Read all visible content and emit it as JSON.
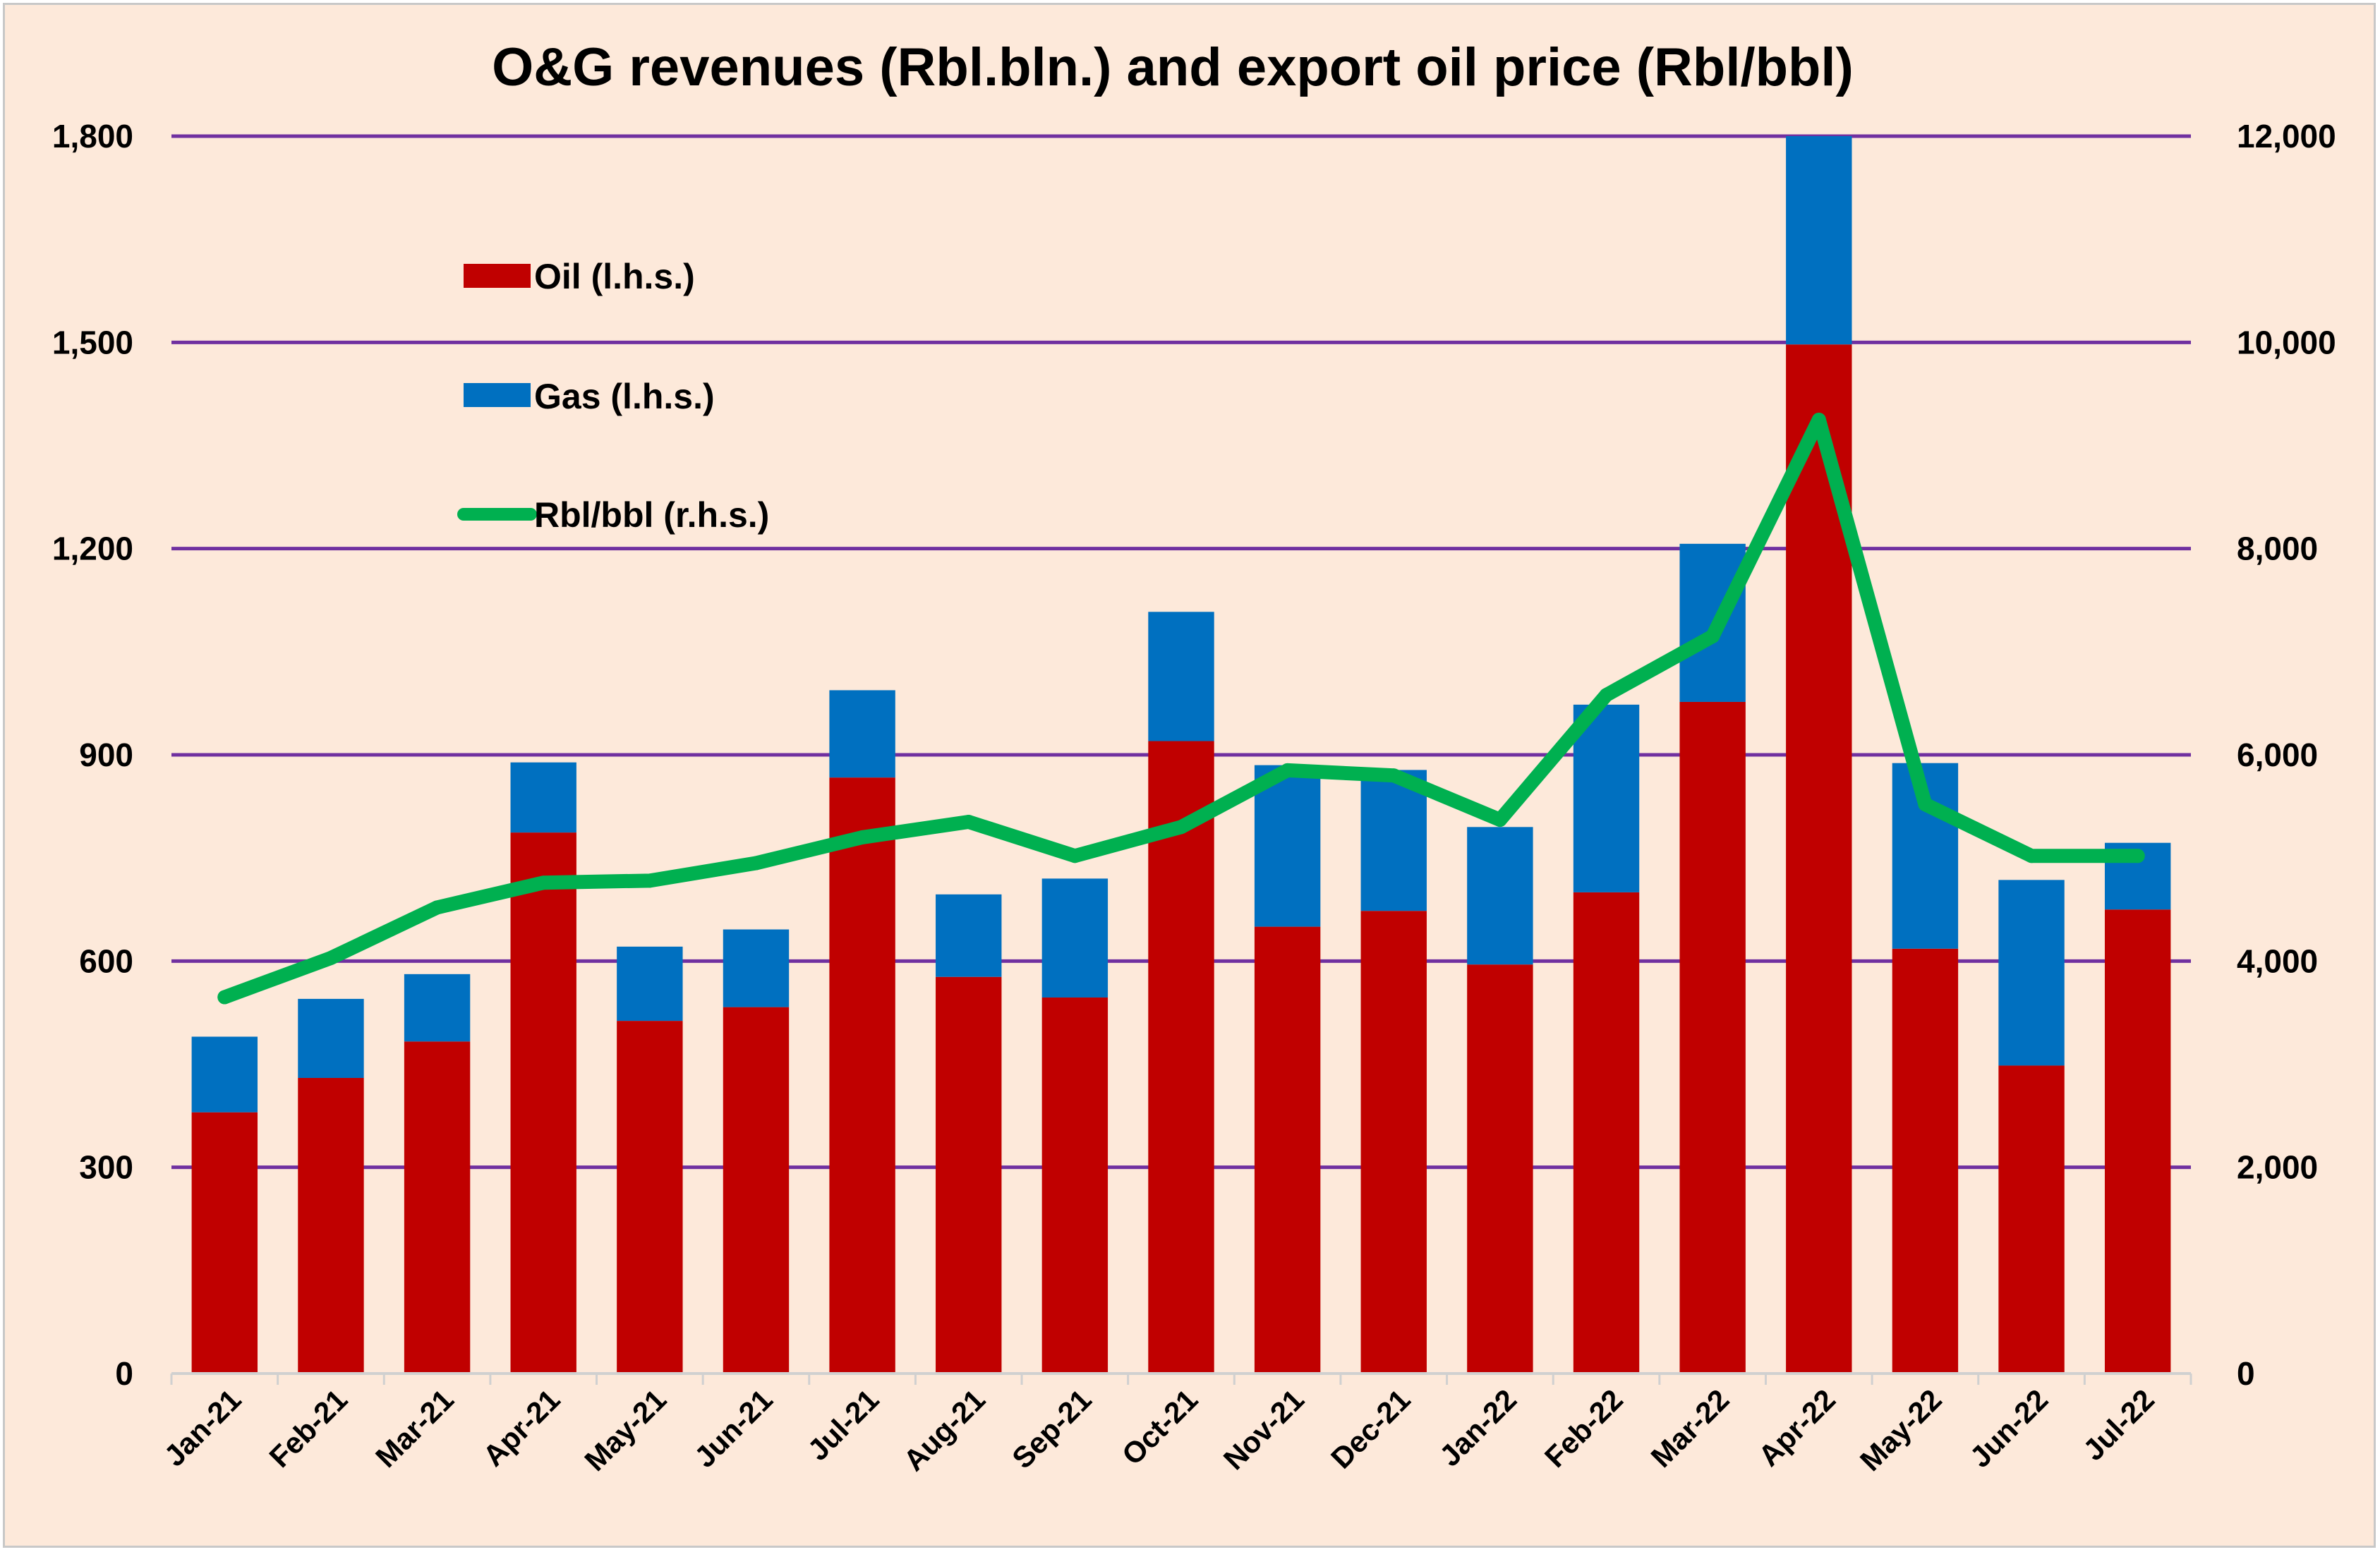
{
  "chart_data": {
    "type": "bar",
    "stacked": true,
    "title": "O&G revenues (Rbl.bln.) and export oil price (Rbl/bbl)",
    "categories": [
      "Jan-21",
      "Feb-21",
      "Mar-21",
      "Apr-21",
      "May-21",
      "Jun-21",
      "Jul-21",
      "Aug-21",
      "Sep-21",
      "Oct-21",
      "Nov-21",
      "Dec-21",
      "Jan-22",
      "Feb-22",
      "Mar-22",
      "Apr-22",
      "May-22",
      "Jun-22",
      "Jul-22"
    ],
    "series": [
      {
        "name": "Oil (l.h.s.)",
        "type": "bar",
        "axis": "left",
        "color": "#c00000",
        "values": [
          380,
          430,
          483,
          787,
          513,
          533,
          867,
          577,
          547,
          920,
          650,
          673,
          595,
          700,
          977,
          1497,
          618,
          448,
          675
        ]
      },
      {
        "name": "Gas (l.h.s.)",
        "type": "bar",
        "axis": "left",
        "color": "#0070c0",
        "values": [
          110,
          115,
          98,
          102,
          108,
          113,
          127,
          120,
          173,
          188,
          235,
          205,
          200,
          273,
          230,
          303,
          270,
          270,
          97
        ]
      },
      {
        "name": "Rbl/bbl (r.h.s.)",
        "type": "line",
        "axis": "right",
        "color": "#00b050",
        "values": [
          3650,
          4030,
          4520,
          4760,
          4780,
          4950,
          5200,
          5350,
          5020,
          5300,
          5850,
          5800,
          5370,
          6580,
          7150,
          9250,
          5520,
          5020,
          5020
        ]
      }
    ],
    "left_axis": {
      "ylim": [
        0,
        1800
      ],
      "ticks": [
        "0",
        "300",
        "600",
        "900",
        "1,200",
        "1,500",
        "1,800"
      ],
      "tick_values": [
        0,
        300,
        600,
        900,
        1200,
        1500,
        1800
      ]
    },
    "right_axis": {
      "ylim": [
        0,
        12000
      ],
      "ticks": [
        "0",
        "2,000",
        "4,000",
        "6,000",
        "8,000",
        "10,000",
        "12,000"
      ],
      "tick_values": [
        0,
        2000,
        4000,
        6000,
        8000,
        10000,
        12000
      ]
    },
    "grid": true,
    "grid_color": "#7030a0",
    "background": "#fde9da",
    "legend_position": "top-left"
  }
}
